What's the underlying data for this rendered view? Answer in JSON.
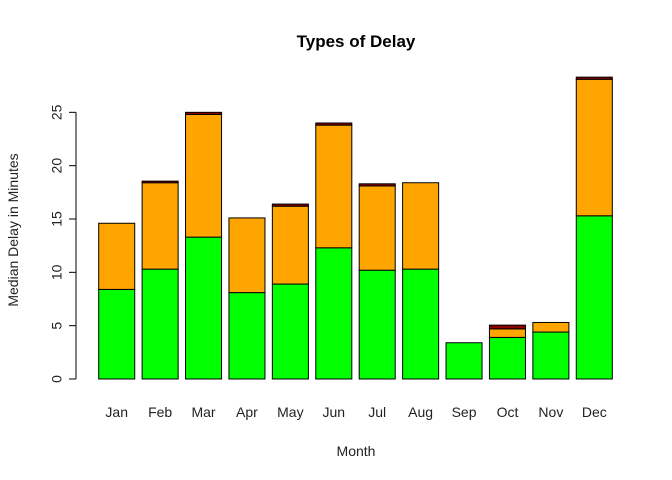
{
  "chart_data": {
    "type": "bar",
    "stacked": true,
    "title": "Types of Delay",
    "xlabel": "Month",
    "ylabel": "Median Delay in Minutes",
    "ylim": [
      0,
      28.5
    ],
    "yticks": [
      0,
      5,
      10,
      15,
      20,
      25
    ],
    "grid": false,
    "legend": "none",
    "categories": [
      "Jan",
      "Feb",
      "Mar",
      "Apr",
      "May",
      "Jun",
      "Jul",
      "Aug",
      "Sep",
      "Oct",
      "Nov",
      "Dec"
    ],
    "series": [
      {
        "color": "#00ff00",
        "values": [
          8.4,
          10.3,
          13.3,
          8.1,
          8.9,
          12.3,
          10.2,
          10.3,
          3.4,
          3.9,
          4.4,
          15.3
        ]
      },
      {
        "color": "#ffa500",
        "values": [
          6.2,
          8.1,
          11.5,
          7.0,
          7.3,
          11.5,
          7.9,
          8.1,
          0.0,
          0.8,
          0.9,
          12.8
        ]
      },
      {
        "color": "#8b0000",
        "values": [
          0.0,
          0.15,
          0.2,
          0.0,
          0.2,
          0.2,
          0.2,
          0.0,
          0.0,
          0.35,
          0.0,
          0.2
        ]
      }
    ]
  }
}
